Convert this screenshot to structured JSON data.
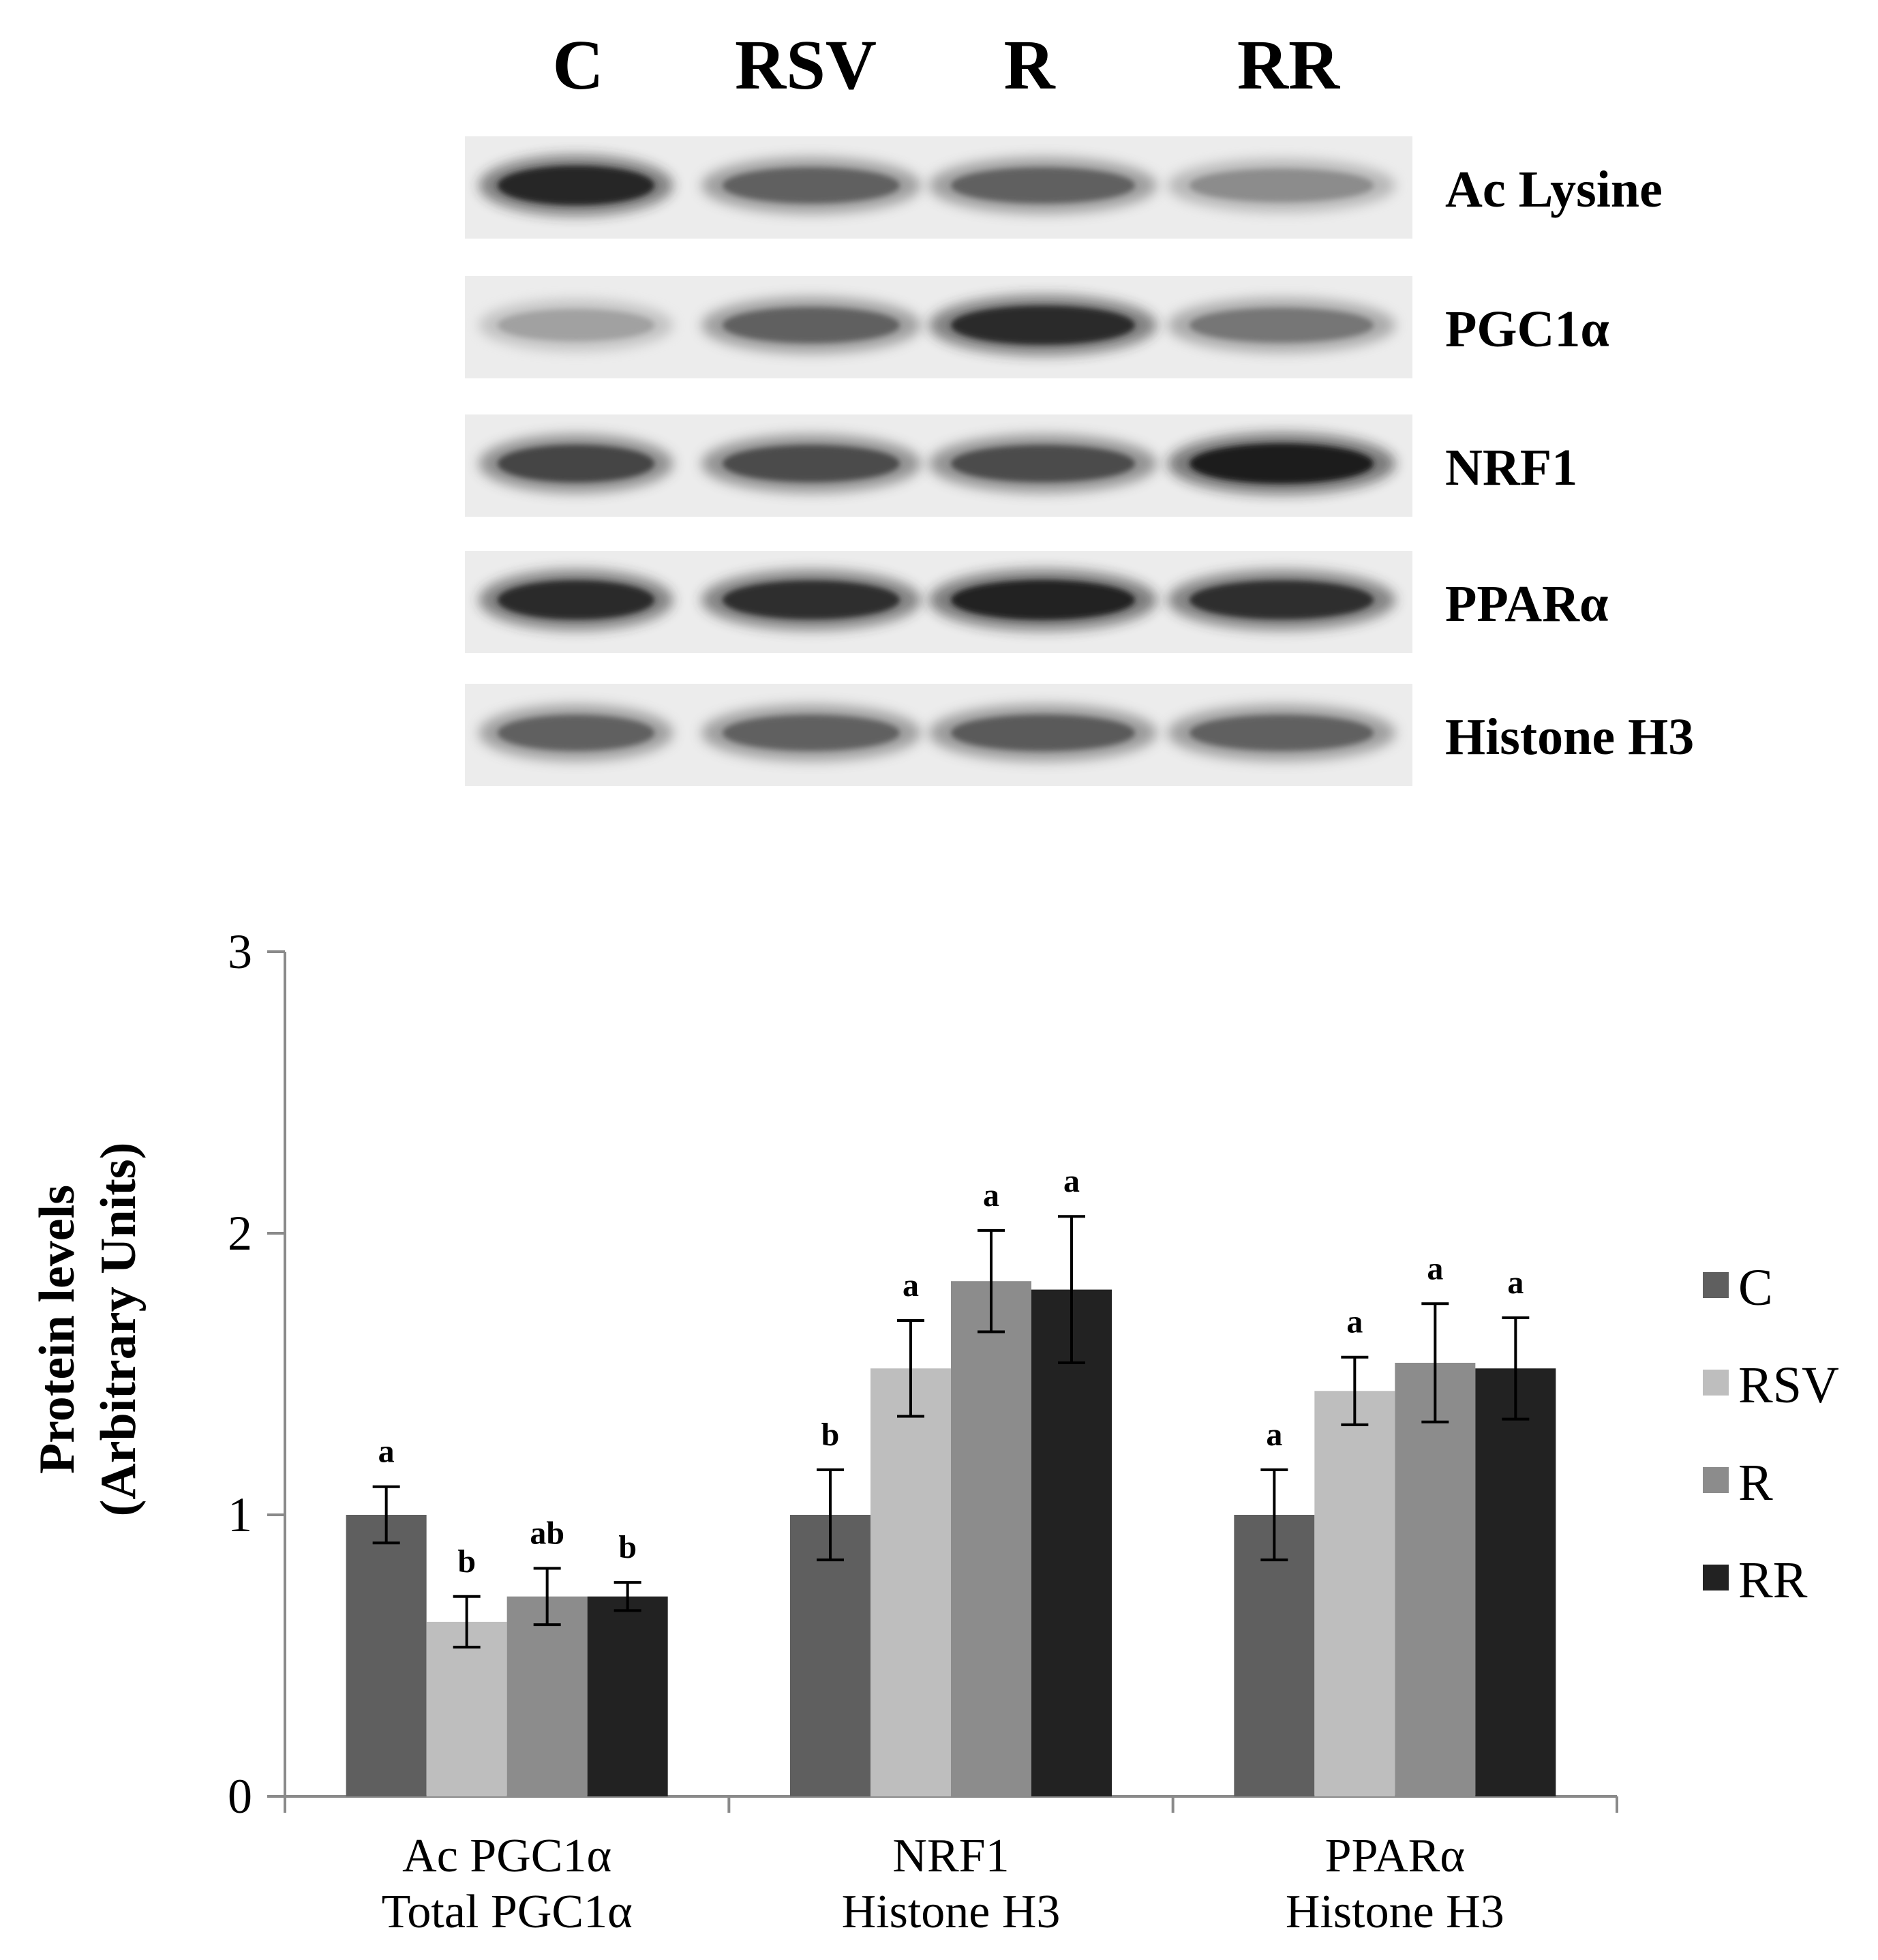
{
  "blot": {
    "lanes": [
      "C",
      "RSV",
      "R",
      "RR"
    ],
    "proteins": [
      {
        "label": "Ac Lysine",
        "intensity": [
          0.9,
          0.62,
          0.62,
          0.42
        ]
      },
      {
        "label": "PGC1α",
        "intensity": [
          0.32,
          0.62,
          0.88,
          0.52
        ]
      },
      {
        "label": "NRF1",
        "intensity": [
          0.75,
          0.72,
          0.72,
          0.95
        ]
      },
      {
        "label": "PPARα",
        "intensity": [
          0.88,
          0.85,
          0.92,
          0.85
        ]
      },
      {
        "label": "Histone H3",
        "intensity": [
          0.62,
          0.62,
          0.65,
          0.62
        ]
      }
    ]
  },
  "chart_data": {
    "type": "bar",
    "title": "",
    "xlabel": "",
    "ylabel": "Protein levels (Arbitrary  Units)",
    "ylabel_lines": [
      "Protein levels",
      "(Arbitrary  Units)"
    ],
    "ylim": [
      0,
      3
    ],
    "yticks": [
      0,
      1,
      2,
      3
    ],
    "grid": false,
    "legend_position": "right",
    "categories": [
      [
        "Ac PGC1α",
        "Total PGC1α"
      ],
      [
        "NRF1",
        "Histone H3"
      ],
      [
        "PPARα",
        "Histone H3"
      ]
    ],
    "series": [
      {
        "name": "C",
        "color": "#5f5f5f",
        "values": [
          1.0,
          1.0,
          1.0
        ],
        "errors": [
          0.1,
          0.16,
          0.16
        ],
        "letters": [
          "a",
          "b",
          "a"
        ]
      },
      {
        "name": "RSV",
        "color": "#bebebe",
        "values": [
          0.62,
          1.52,
          1.44
        ],
        "errors": [
          0.09,
          0.17,
          0.12
        ],
        "letters": [
          "b",
          "a",
          "a"
        ]
      },
      {
        "name": "R",
        "color": "#8c8c8c",
        "values": [
          0.71,
          1.83,
          1.54
        ],
        "errors": [
          0.1,
          0.18,
          0.21
        ],
        "letters": [
          "ab",
          "a",
          "a"
        ]
      },
      {
        "name": "RR",
        "color": "#222222",
        "values": [
          0.71,
          1.8,
          1.52
        ],
        "errors": [
          0.05,
          0.26,
          0.18
        ],
        "letters": [
          "b",
          "a",
          "a"
        ]
      }
    ]
  }
}
